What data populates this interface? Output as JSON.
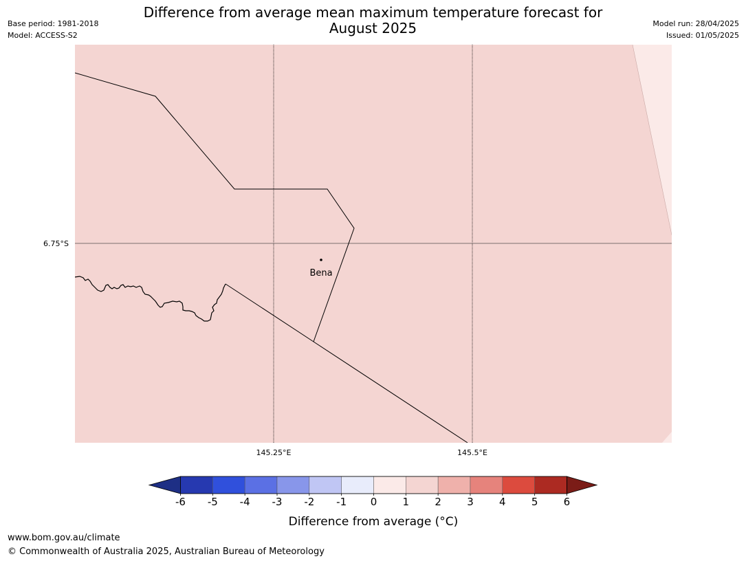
{
  "header": {
    "title_line1": "Difference from average mean maximum temperature forecast for",
    "title_line2": "August 2025",
    "base_period": "Base period: 1981-2018",
    "model": "Model: ACCESS-S2",
    "model_run": "Model run: 28/04/2025",
    "issued": "Issued: 01/05/2025"
  },
  "map": {
    "fill_color": "#f4d5d2",
    "light_fill_color": "#fbeae8",
    "place_label": "Bena",
    "lat_label": "6.75°S",
    "lon_labels": [
      "145.25°E",
      "145.5°E"
    ]
  },
  "colorbar": {
    "ticks": [
      "-6",
      "-5",
      "-4",
      "-3",
      "-2",
      "-1",
      "0",
      "1",
      "2",
      "3",
      "4",
      "5",
      "6"
    ],
    "colors": [
      "#1e2f85",
      "#2639b0",
      "#3050dc",
      "#5b70e4",
      "#8896ea",
      "#c0c6f4",
      "#e8ecfb",
      "#fbeae8",
      "#f4d5d2",
      "#efb1ab",
      "#e6837c",
      "#dc4b3e",
      "#ac2a22",
      "#7b1c17"
    ],
    "label": "Difference from average (°C)"
  },
  "footer": {
    "url": "www.bom.gov.au/climate",
    "copyright": "© Commonwealth of Australia 2025, Australian Bureau of Meteorology"
  }
}
